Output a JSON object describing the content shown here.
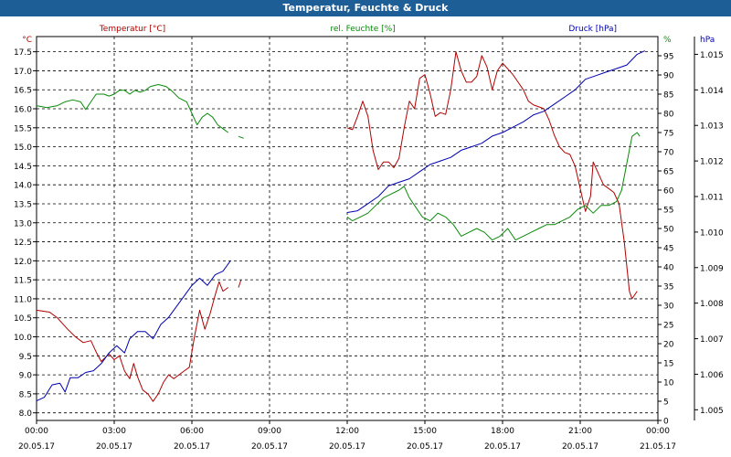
{
  "chart_data": {
    "type": "line",
    "title": "Temperatur, Feuchte & Druck",
    "legend": {
      "temperature": "Temperatur [°C]",
      "humidity": "rel. Feuchte [%]",
      "pressure": "Druck [hPa]"
    },
    "axes": {
      "temp_unit": "°C",
      "hum_unit": "%",
      "pres_unit": "hPa",
      "temp_range": [
        7.8,
        17.9
      ],
      "temp_ticks": [
        "8.0",
        "8.5",
        "9.0",
        "9.5",
        "10.0",
        "10.5",
        "11.0",
        "11.5",
        "12.0",
        "12.5",
        "13.0",
        "13.5",
        "14.0",
        "14.5",
        "15.0",
        "15.5",
        "16.0",
        "16.5",
        "17.0",
        "17.5"
      ],
      "hum_range": [
        0,
        100
      ],
      "hum_ticks": [
        "0",
        "5",
        "10",
        "15",
        "20",
        "25",
        "30",
        "35",
        "40",
        "45",
        "50",
        "55",
        "60",
        "65",
        "70",
        "75",
        "80",
        "85",
        "90",
        "95"
      ],
      "pres_range": [
        1.0047,
        1.0155
      ],
      "pres_ticks": [
        "1.005",
        "1.006",
        "1.007",
        "1.008",
        "1.009",
        "1.010",
        "1.011",
        "1.012",
        "1.013",
        "1.014",
        "1.015"
      ],
      "x_range": [
        0,
        24
      ],
      "x_ticks": [
        {
          "time": "00:00",
          "date": "20.05.17"
        },
        {
          "time": "03:00",
          "date": "20.05.17"
        },
        {
          "time": "06:00",
          "date": "20.05.17"
        },
        {
          "time": "09:00",
          "date": "20.05.17"
        },
        {
          "time": "12:00",
          "date": "20.05.17"
        },
        {
          "time": "15:00",
          "date": "20.05.17"
        },
        {
          "time": "18:00",
          "date": "20.05.17"
        },
        {
          "time": "21:00",
          "date": "20.05.17"
        },
        {
          "time": "00:00",
          "date": "21.05.17"
        }
      ]
    },
    "colors": {
      "temperature": "#b00000",
      "humidity": "#0a8a0a",
      "pressure": "#0000b0",
      "title_bar": "#1e5e96",
      "grid": "#000000"
    },
    "series": [
      {
        "name": "Temperatur [°C]",
        "key": "temperature",
        "segments": [
          [
            [
              0,
              10.7
            ],
            [
              0.5,
              10.65
            ],
            [
              0.8,
              10.5
            ],
            [
              1.2,
              10.2
            ],
            [
              1.5,
              10.0
            ],
            [
              1.8,
              9.85
            ],
            [
              2.1,
              9.9
            ],
            [
              2.3,
              9.6
            ],
            [
              2.5,
              9.35
            ],
            [
              2.8,
              9.55
            ],
            [
              3.0,
              9.4
            ],
            [
              3.2,
              9.5
            ],
            [
              3.4,
              9.1
            ],
            [
              3.6,
              8.9
            ],
            [
              3.75,
              9.3
            ],
            [
              3.9,
              8.95
            ],
            [
              4.1,
              8.6
            ],
            [
              4.3,
              8.5
            ],
            [
              4.5,
              8.3
            ],
            [
              4.7,
              8.5
            ],
            [
              4.9,
              8.8
            ],
            [
              5.1,
              9.0
            ],
            [
              5.3,
              8.9
            ],
            [
              5.5,
              9.0
            ],
            [
              5.7,
              9.1
            ],
            [
              5.9,
              9.2
            ],
            [
              6.1,
              10.0
            ],
            [
              6.3,
              10.7
            ],
            [
              6.5,
              10.2
            ],
            [
              6.7,
              10.6
            ],
            [
              6.9,
              11.1
            ],
            [
              7.05,
              11.45
            ],
            [
              7.2,
              11.2
            ],
            [
              7.4,
              11.3
            ]
          ],
          [
            [
              7.8,
              11.3
            ],
            [
              7.9,
              11.5
            ]
          ],
          [
            [
              12.0,
              15.5
            ],
            [
              12.2,
              15.45
            ],
            [
              12.4,
              15.8
            ],
            [
              12.6,
              16.2
            ],
            [
              12.8,
              15.8
            ],
            [
              13.0,
              14.9
            ],
            [
              13.2,
              14.4
            ],
            [
              13.4,
              14.6
            ],
            [
              13.6,
              14.6
            ],
            [
              13.8,
              14.45
            ],
            [
              14.0,
              14.7
            ],
            [
              14.2,
              15.5
            ],
            [
              14.4,
              16.2
            ],
            [
              14.6,
              16.0
            ],
            [
              14.8,
              16.8
            ],
            [
              15.0,
              16.9
            ],
            [
              15.2,
              16.4
            ],
            [
              15.4,
              15.8
            ],
            [
              15.6,
              15.9
            ],
            [
              15.8,
              15.85
            ],
            [
              16.0,
              16.5
            ],
            [
              16.2,
              17.5
            ],
            [
              16.4,
              17.0
            ],
            [
              16.6,
              16.7
            ],
            [
              16.8,
              16.7
            ],
            [
              17.0,
              16.85
            ],
            [
              17.2,
              17.4
            ],
            [
              17.4,
              17.1
            ],
            [
              17.6,
              16.5
            ],
            [
              17.8,
              17.0
            ],
            [
              18.0,
              17.2
            ],
            [
              18.2,
              17.05
            ],
            [
              18.4,
              16.9
            ],
            [
              18.6,
              16.7
            ],
            [
              18.8,
              16.5
            ],
            [
              19.0,
              16.2
            ],
            [
              19.2,
              16.1
            ],
            [
              19.4,
              16.05
            ],
            [
              19.6,
              16.0
            ],
            [
              19.8,
              15.7
            ],
            [
              20.0,
              15.3
            ],
            [
              20.2,
              15.0
            ],
            [
              20.4,
              14.85
            ],
            [
              20.6,
              14.8
            ],
            [
              20.8,
              14.5
            ],
            [
              21.0,
              13.9
            ],
            [
              21.2,
              13.3
            ],
            [
              21.4,
              13.7
            ],
            [
              21.5,
              14.6
            ],
            [
              21.7,
              14.3
            ],
            [
              21.9,
              14.0
            ],
            [
              22.1,
              13.9
            ],
            [
              22.3,
              13.8
            ],
            [
              22.5,
              13.5
            ],
            [
              22.7,
              12.5
            ],
            [
              22.9,
              11.2
            ],
            [
              23.0,
              11.0
            ],
            [
              23.2,
              11.2
            ]
          ]
        ]
      },
      {
        "name": "rel. Feuchte [%]",
        "key": "humidity",
        "segments": [
          [
            [
              0,
              82
            ],
            [
              0.4,
              81.5
            ],
            [
              0.8,
              82
            ],
            [
              1.1,
              83
            ],
            [
              1.4,
              83.5
            ],
            [
              1.7,
              83
            ],
            [
              1.9,
              81
            ],
            [
              2.1,
              83
            ],
            [
              2.3,
              85
            ],
            [
              2.6,
              85
            ],
            [
              2.8,
              84.5
            ],
            [
              3.0,
              85
            ],
            [
              3.2,
              86
            ],
            [
              3.4,
              86
            ],
            [
              3.6,
              85
            ],
            [
              3.8,
              86
            ],
            [
              4.0,
              85.5
            ],
            [
              4.2,
              86
            ],
            [
              4.4,
              87
            ],
            [
              4.7,
              87.5
            ],
            [
              5.0,
              87
            ],
            [
              5.2,
              86
            ],
            [
              5.5,
              84
            ],
            [
              5.8,
              83
            ],
            [
              6.0,
              80
            ],
            [
              6.2,
              77
            ],
            [
              6.4,
              79
            ],
            [
              6.6,
              80
            ],
            [
              6.8,
              79
            ],
            [
              7.0,
              77
            ],
            [
              7.2,
              76
            ],
            [
              7.4,
              75
            ]
          ],
          [
            [
              7.8,
              74
            ],
            [
              8.0,
              73.5
            ]
          ],
          [
            [
              12.0,
              53
            ],
            [
              12.2,
              52
            ],
            [
              12.5,
              53
            ],
            [
              12.8,
              54
            ],
            [
              13.1,
              56
            ],
            [
              13.4,
              58
            ],
            [
              13.7,
              59
            ],
            [
              14.0,
              60
            ],
            [
              14.2,
              61
            ],
            [
              14.4,
              58
            ],
            [
              14.6,
              56
            ],
            [
              14.9,
              53
            ],
            [
              15.2,
              52
            ],
            [
              15.5,
              54
            ],
            [
              15.8,
              53
            ],
            [
              16.1,
              51
            ],
            [
              16.4,
              48
            ],
            [
              16.7,
              49
            ],
            [
              17.0,
              50
            ],
            [
              17.3,
              49
            ],
            [
              17.6,
              47
            ],
            [
              17.9,
              48
            ],
            [
              18.2,
              50
            ],
            [
              18.5,
              47
            ],
            [
              18.8,
              48
            ],
            [
              19.1,
              49
            ],
            [
              19.4,
              50
            ],
            [
              19.7,
              51
            ],
            [
              20.0,
              51
            ],
            [
              20.3,
              52
            ],
            [
              20.6,
              53
            ],
            [
              20.9,
              55
            ],
            [
              21.2,
              56
            ],
            [
              21.5,
              54
            ],
            [
              21.8,
              56
            ],
            [
              22.1,
              56
            ],
            [
              22.4,
              57
            ],
            [
              22.6,
              60
            ],
            [
              22.8,
              67
            ],
            [
              23.0,
              74
            ],
            [
              23.2,
              75
            ],
            [
              23.3,
              74
            ]
          ]
        ]
      },
      {
        "name": "Druck [hPa]",
        "key": "pressure",
        "segments": [
          [
            [
              0,
              1.00525
            ],
            [
              0.3,
              1.00535
            ],
            [
              0.6,
              1.0057
            ],
            [
              0.9,
              1.00575
            ],
            [
              1.1,
              1.0055
            ],
            [
              1.3,
              1.0059
            ],
            [
              1.6,
              1.0059
            ],
            [
              1.9,
              1.00605
            ],
            [
              2.2,
              1.0061
            ],
            [
              2.5,
              1.0063
            ],
            [
              2.8,
              1.0066
            ],
            [
              3.1,
              1.0068
            ],
            [
              3.4,
              1.0066
            ],
            [
              3.6,
              1.007
            ],
            [
              3.9,
              1.0072
            ],
            [
              4.2,
              1.0072
            ],
            [
              4.5,
              1.007
            ],
            [
              4.8,
              1.0074
            ],
            [
              5.1,
              1.0076
            ],
            [
              5.4,
              1.0079
            ],
            [
              5.7,
              1.0082
            ],
            [
              6.0,
              1.0085
            ],
            [
              6.3,
              1.0087
            ],
            [
              6.6,
              1.0085
            ],
            [
              6.9,
              1.0088
            ],
            [
              7.2,
              1.0089
            ],
            [
              7.5,
              1.0092
            ]
          ],
          [
            [
              12.0,
              1.01055
            ],
            [
              12.4,
              1.0106
            ],
            [
              12.8,
              1.0108
            ],
            [
              13.2,
              1.011
            ],
            [
              13.6,
              1.0113
            ],
            [
              14.0,
              1.0114
            ],
            [
              14.4,
              1.0115
            ],
            [
              14.8,
              1.0117
            ],
            [
              15.2,
              1.0119
            ],
            [
              15.6,
              1.012
            ],
            [
              16.0,
              1.0121
            ],
            [
              16.4,
              1.0123
            ],
            [
              16.8,
              1.0124
            ],
            [
              17.2,
              1.0125
            ],
            [
              17.6,
              1.0127
            ],
            [
              18.0,
              1.0128
            ],
            [
              18.4,
              1.01295
            ],
            [
              18.8,
              1.0131
            ],
            [
              19.2,
              1.0133
            ],
            [
              19.6,
              1.0134
            ],
            [
              20.0,
              1.0136
            ],
            [
              20.4,
              1.0138
            ],
            [
              20.8,
              1.014
            ],
            [
              21.2,
              1.0143
            ],
            [
              21.6,
              1.0144
            ],
            [
              22.0,
              1.0145
            ],
            [
              22.4,
              1.0146
            ],
            [
              22.8,
              1.0147
            ],
            [
              23.2,
              1.015
            ],
            [
              23.5,
              1.0151
            ]
          ]
        ]
      }
    ]
  }
}
